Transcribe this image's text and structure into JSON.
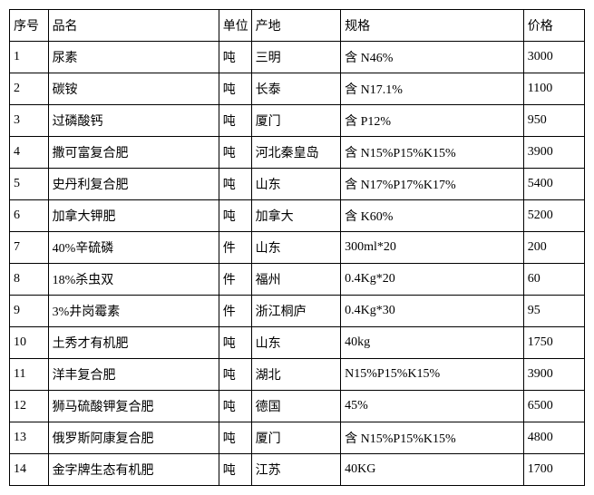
{
  "table": {
    "columns": [
      "序号",
      "品名",
      "单位",
      "产地",
      "规格",
      "价格"
    ],
    "rows": [
      [
        "1",
        "尿素",
        "吨",
        "三明",
        "含 N46%",
        "3000"
      ],
      [
        "2",
        "碳铵",
        "吨",
        "长泰",
        "含 N17.1%",
        "1100"
      ],
      [
        "3",
        "过磷酸钙",
        "吨",
        "厦门",
        "含 P12%",
        "950"
      ],
      [
        "4",
        "撒可富复合肥",
        "吨",
        "河北秦皇岛",
        "含 N15%P15%K15%",
        "3900"
      ],
      [
        "5",
        "史丹利复合肥",
        "吨",
        "山东",
        "含 N17%P17%K17%",
        "5400"
      ],
      [
        "6",
        "加拿大钾肥",
        "吨",
        "加拿大",
        "含 K60%",
        "5200"
      ],
      [
        "7",
        "40%辛硫磷",
        "件",
        "山东",
        "300ml*20",
        "200"
      ],
      [
        "8",
        "18%杀虫双",
        "件",
        "福州",
        "0.4Kg*20",
        "60"
      ],
      [
        "9",
        "3%井岗霉素",
        "件",
        "浙江桐庐",
        "0.4Kg*30",
        "95"
      ],
      [
        "10",
        "土秀才有机肥",
        "吨",
        "山东",
        "40kg",
        "1750"
      ],
      [
        "11",
        "洋丰复合肥",
        "吨",
        "湖北",
        "N15%P15%K15%",
        "3900"
      ],
      [
        "12",
        "狮马硫酸钾复合肥",
        "吨",
        "德国",
        "45%",
        "6500"
      ],
      [
        "13",
        "俄罗斯阿康复合肥",
        "吨",
        "厦门",
        "含 N15%P15%K15%",
        "4800"
      ],
      [
        "14",
        "金字牌生态有机肥",
        "吨",
        "江苏",
        "40KG",
        "1700"
      ]
    ]
  }
}
